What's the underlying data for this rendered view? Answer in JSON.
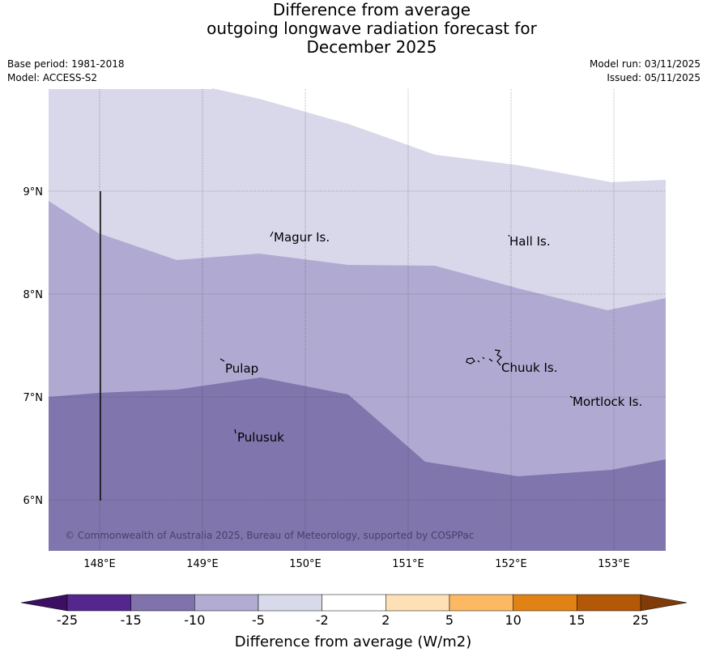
{
  "title": {
    "line1": "Difference from average",
    "line2": "outgoing longwave radiation forecast for",
    "line3": "December 2025"
  },
  "meta": {
    "base_period": "Base period: 1981-2018",
    "model": "Model: ACCESS-S2",
    "model_run": "Model run: 03/11/2025",
    "issued": "Issued: 05/11/2025"
  },
  "map": {
    "lat_labels": [
      "9°N",
      "8°N",
      "7°N",
      "6°N"
    ],
    "lon_labels": [
      "148°E",
      "149°E",
      "150°E",
      "151°E",
      "152°E",
      "153°E"
    ],
    "places": {
      "magur": "Magur Is.",
      "hall": "Hall Is.",
      "pulap": "Pulap",
      "chuuk": "Chuuk Is.",
      "mortlock": "Mortlock Is.",
      "pulusuk": "Pulusuk"
    },
    "credit": "© Commonwealth of Australia 2025, Bureau of Meteorology, supported by COSPPac",
    "colors": {
      "band_minus5_minus2": "#d8d8ea",
      "band_minus10_minus5": "#b0aad2",
      "band_minus15_minus10": "#8075ad"
    }
  },
  "colorbar": {
    "label": "Difference from average (W/m2)",
    "ticks": [
      "-25",
      "-15",
      "-10",
      "-5",
      "-2",
      "2",
      "5",
      "10",
      "15",
      "25"
    ],
    "under_color": "#3c0f62",
    "over_color": "#7f3b08",
    "colors": [
      "#54278f",
      "#8073ac",
      "#b2abd2",
      "#d8daeb",
      "#ffffff",
      "#fee0b6",
      "#fdb863",
      "#e08214",
      "#b35806"
    ]
  }
}
